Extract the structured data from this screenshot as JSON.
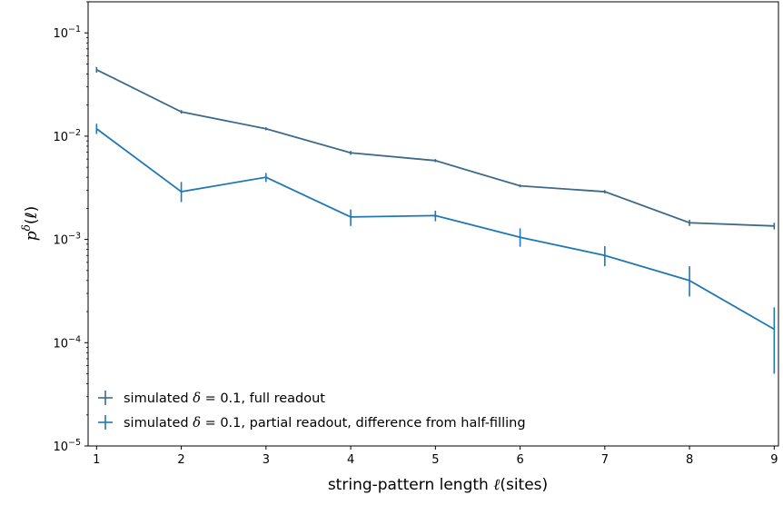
{
  "chart_data": {
    "type": "line",
    "x": [
      1,
      2,
      3,
      4,
      5,
      6,
      7,
      8,
      9
    ],
    "xticks": [
      "1",
      "2",
      "3",
      "4",
      "5",
      "6",
      "7",
      "8",
      "9"
    ],
    "xlim": [
      0.9,
      9.05
    ],
    "xlabel": {
      "prefix": "string-pattern length ",
      "var": "ℓ",
      "suffix": "(sites)"
    },
    "yscale": "log",
    "ylim": [
      1e-05,
      0.2
    ],
    "yticks": [
      {
        "value": 1e-05,
        "base": "10",
        "exp": "−5"
      },
      {
        "value": 0.0001,
        "base": "10",
        "exp": "−4"
      },
      {
        "value": 0.001,
        "base": "10",
        "exp": "−3"
      },
      {
        "value": 0.01,
        "base": "10",
        "exp": "−2"
      },
      {
        "value": 0.1,
        "base": "10",
        "exp": "−1"
      }
    ],
    "ylabel": {
      "var": "p",
      "sup": "δ",
      "arg": "(ℓ)"
    },
    "grid": false,
    "legend_position": "lower-left",
    "series": [
      {
        "name": {
          "pre": "simulated ",
          "var": "δ",
          "post": " = 0.1, full readout"
        },
        "color": "#3e6a8a",
        "values": [
          0.044,
          0.0172,
          0.0118,
          0.0069,
          0.0058,
          0.0033,
          0.0029,
          0.00145,
          0.00135
        ],
        "err_low": [
          0.0412,
          0.0165,
          0.0114,
          0.0066,
          0.0056,
          0.0032,
          0.0028,
          0.00135,
          0.00125
        ],
        "err_high": [
          0.0468,
          0.0179,
          0.0122,
          0.0072,
          0.006,
          0.0034,
          0.003,
          0.00155,
          0.00145
        ]
      },
      {
        "name": {
          "pre": "simulated ",
          "var": "δ",
          "post": " = 0.1, partial readout, difference from half-filling"
        },
        "color": "#1f78b4",
        "values": [
          0.0118,
          0.0029,
          0.004,
          0.00165,
          0.0017,
          0.00105,
          0.0007,
          0.0004,
          0.000135
        ],
        "err_low": [
          0.0105,
          0.0023,
          0.0036,
          0.00135,
          0.0015,
          0.00085,
          0.00055,
          0.00028,
          5e-05
        ],
        "err_high": [
          0.0132,
          0.0036,
          0.0044,
          0.00195,
          0.0019,
          0.00128,
          0.00086,
          0.00055,
          0.00022
        ]
      }
    ]
  }
}
